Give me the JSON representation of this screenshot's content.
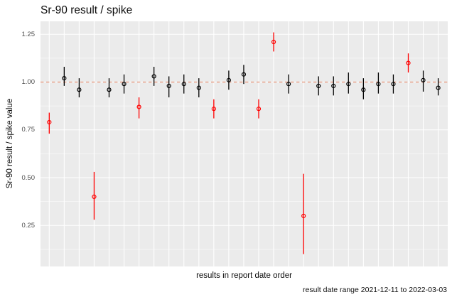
{
  "title": "Sr-90 result / spike",
  "chart_data": {
    "type": "scatter",
    "subtype": "pointrange",
    "title": "Sr-90 result / spike",
    "xlabel": "results in report date order",
    "ylabel": "Sr-90 result / spike value",
    "caption": "result date range 2021-12-11 to 2022-03-03",
    "x_tick_labels": [],
    "y_ticks": [
      0.25,
      0.5,
      0.75,
      1.0,
      1.25
    ],
    "y_tick_labels": [
      "0.25",
      "0.50",
      "0.75",
      "1.00",
      "1.25"
    ],
    "y_minor_ticks": [
      0.125,
      0.375,
      0.625,
      0.875,
      1.125
    ],
    "ylim": [
      0.04,
      1.32
    ],
    "grid": "white major gridlines on gray panel, minor horizontal gridlines",
    "legend": "none",
    "reference_line": {
      "y": 1.0,
      "style": "dashed"
    },
    "colors": {
      "panel_bg": "#EBEBEB",
      "gridline": "#FFFFFF",
      "normal_point": "#000000",
      "flagged_point": "#FF0000",
      "reference_line": "#E9967A",
      "tick_text": "#4D4D4D",
      "text": "#0D0D0D"
    },
    "x_description": "27 results in report date order (index 1-27, no x tick labels)",
    "points": [
      {
        "i": 1,
        "y": 0.79,
        "ymin": 0.73,
        "ymax": 0.84,
        "group": "flagged"
      },
      {
        "i": 2,
        "y": 1.02,
        "ymin": 0.98,
        "ymax": 1.08,
        "group": "normal"
      },
      {
        "i": 3,
        "y": 0.96,
        "ymin": 0.92,
        "ymax": 1.02,
        "group": "normal"
      },
      {
        "i": 4,
        "y": 0.4,
        "ymin": 0.28,
        "ymax": 0.53,
        "group": "flagged"
      },
      {
        "i": 5,
        "y": 0.96,
        "ymin": 0.92,
        "ymax": 1.02,
        "group": "normal"
      },
      {
        "i": 6,
        "y": 0.99,
        "ymin": 0.94,
        "ymax": 1.04,
        "group": "normal"
      },
      {
        "i": 7,
        "y": 0.87,
        "ymin": 0.81,
        "ymax": 0.92,
        "group": "flagged"
      },
      {
        "i": 8,
        "y": 1.03,
        "ymin": 0.98,
        "ymax": 1.08,
        "group": "normal"
      },
      {
        "i": 9,
        "y": 0.98,
        "ymin": 0.92,
        "ymax": 1.03,
        "group": "normal"
      },
      {
        "i": 10,
        "y": 0.99,
        "ymin": 0.94,
        "ymax": 1.04,
        "group": "normal"
      },
      {
        "i": 11,
        "y": 0.97,
        "ymin": 0.92,
        "ymax": 1.02,
        "group": "normal"
      },
      {
        "i": 12,
        "y": 0.86,
        "ymin": 0.81,
        "ymax": 0.91,
        "group": "flagged"
      },
      {
        "i": 13,
        "y": 1.01,
        "ymin": 0.96,
        "ymax": 1.06,
        "group": "normal"
      },
      {
        "i": 14,
        "y": 1.04,
        "ymin": 0.99,
        "ymax": 1.09,
        "group": "normal"
      },
      {
        "i": 15,
        "y": 0.86,
        "ymin": 0.81,
        "ymax": 0.91,
        "group": "flagged"
      },
      {
        "i": 16,
        "y": 1.21,
        "ymin": 1.16,
        "ymax": 1.26,
        "group": "flagged"
      },
      {
        "i": 17,
        "y": 0.99,
        "ymin": 0.94,
        "ymax": 1.04,
        "group": "normal"
      },
      {
        "i": 18,
        "y": 0.3,
        "ymin": 0.1,
        "ymax": 0.52,
        "group": "flagged"
      },
      {
        "i": 19,
        "y": 0.98,
        "ymin": 0.93,
        "ymax": 1.03,
        "group": "normal"
      },
      {
        "i": 20,
        "y": 0.98,
        "ymin": 0.93,
        "ymax": 1.03,
        "group": "normal"
      },
      {
        "i": 21,
        "y": 0.99,
        "ymin": 0.94,
        "ymax": 1.05,
        "group": "normal"
      },
      {
        "i": 22,
        "y": 0.96,
        "ymin": 0.91,
        "ymax": 1.02,
        "group": "normal"
      },
      {
        "i": 23,
        "y": 0.99,
        "ymin": 0.94,
        "ymax": 1.05,
        "group": "normal"
      },
      {
        "i": 24,
        "y": 0.99,
        "ymin": 0.94,
        "ymax": 1.04,
        "group": "normal"
      },
      {
        "i": 25,
        "y": 1.1,
        "ymin": 1.05,
        "ymax": 1.15,
        "group": "flagged"
      },
      {
        "i": 26,
        "y": 1.01,
        "ymin": 0.95,
        "ymax": 1.06,
        "group": "normal"
      },
      {
        "i": 27,
        "y": 0.97,
        "ymin": 0.93,
        "ymax": 1.02,
        "group": "normal"
      }
    ]
  }
}
